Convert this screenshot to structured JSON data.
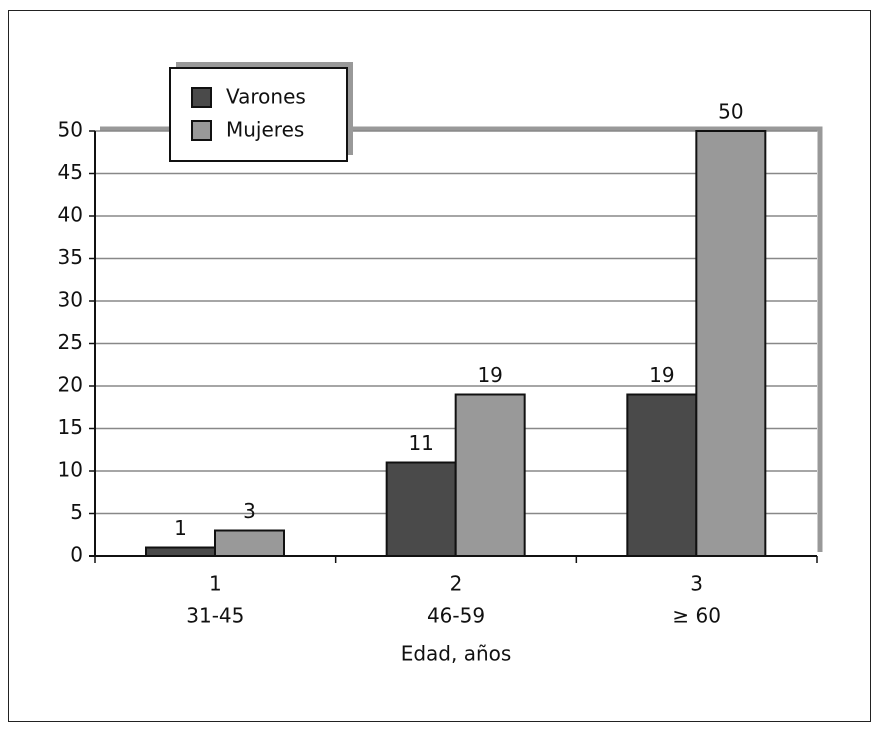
{
  "chart_data": {
    "type": "bar",
    "x_label": "Edad, años",
    "categories": [
      "1",
      "2",
      "3"
    ],
    "category_sublabels": [
      "31-45",
      "46-59",
      "≥ 60"
    ],
    "series": [
      {
        "name": "Varones",
        "color": "#4a4a4a",
        "values": [
          1,
          11,
          19
        ]
      },
      {
        "name": "Mujeres",
        "color": "#999999",
        "values": [
          3,
          19,
          50
        ]
      }
    ],
    "ylim": [
      0,
      50
    ],
    "yticks": [
      0,
      5,
      10,
      15,
      20,
      25,
      30,
      35,
      40,
      45,
      50
    ],
    "grid": true,
    "legend": "top-left"
  }
}
